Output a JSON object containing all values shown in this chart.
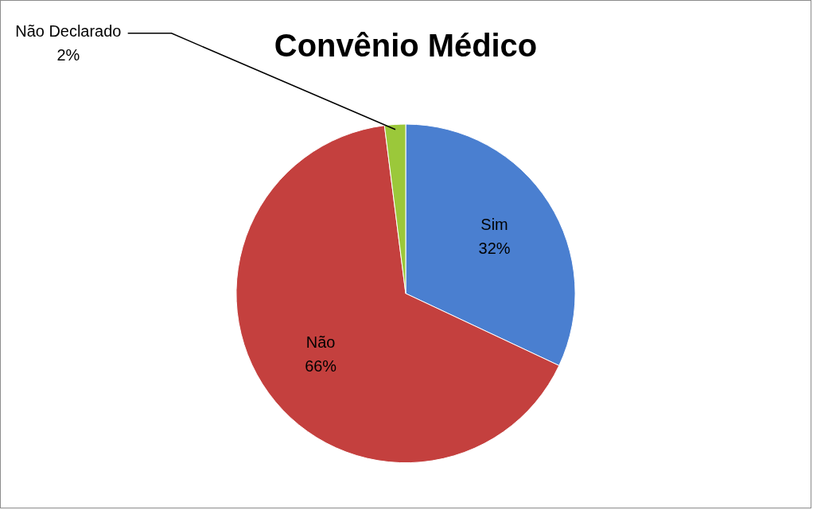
{
  "chart_data": {
    "type": "pie",
    "title": "Convênio Médico",
    "categories": [
      "Sim",
      "Não",
      "Não Declarado"
    ],
    "values": [
      32,
      66,
      2
    ],
    "value_labels": [
      "32%",
      "66%",
      "2%"
    ],
    "colors": [
      "#4a7fd0",
      "#c4403e",
      "#9bc83a"
    ],
    "legend": false
  }
}
